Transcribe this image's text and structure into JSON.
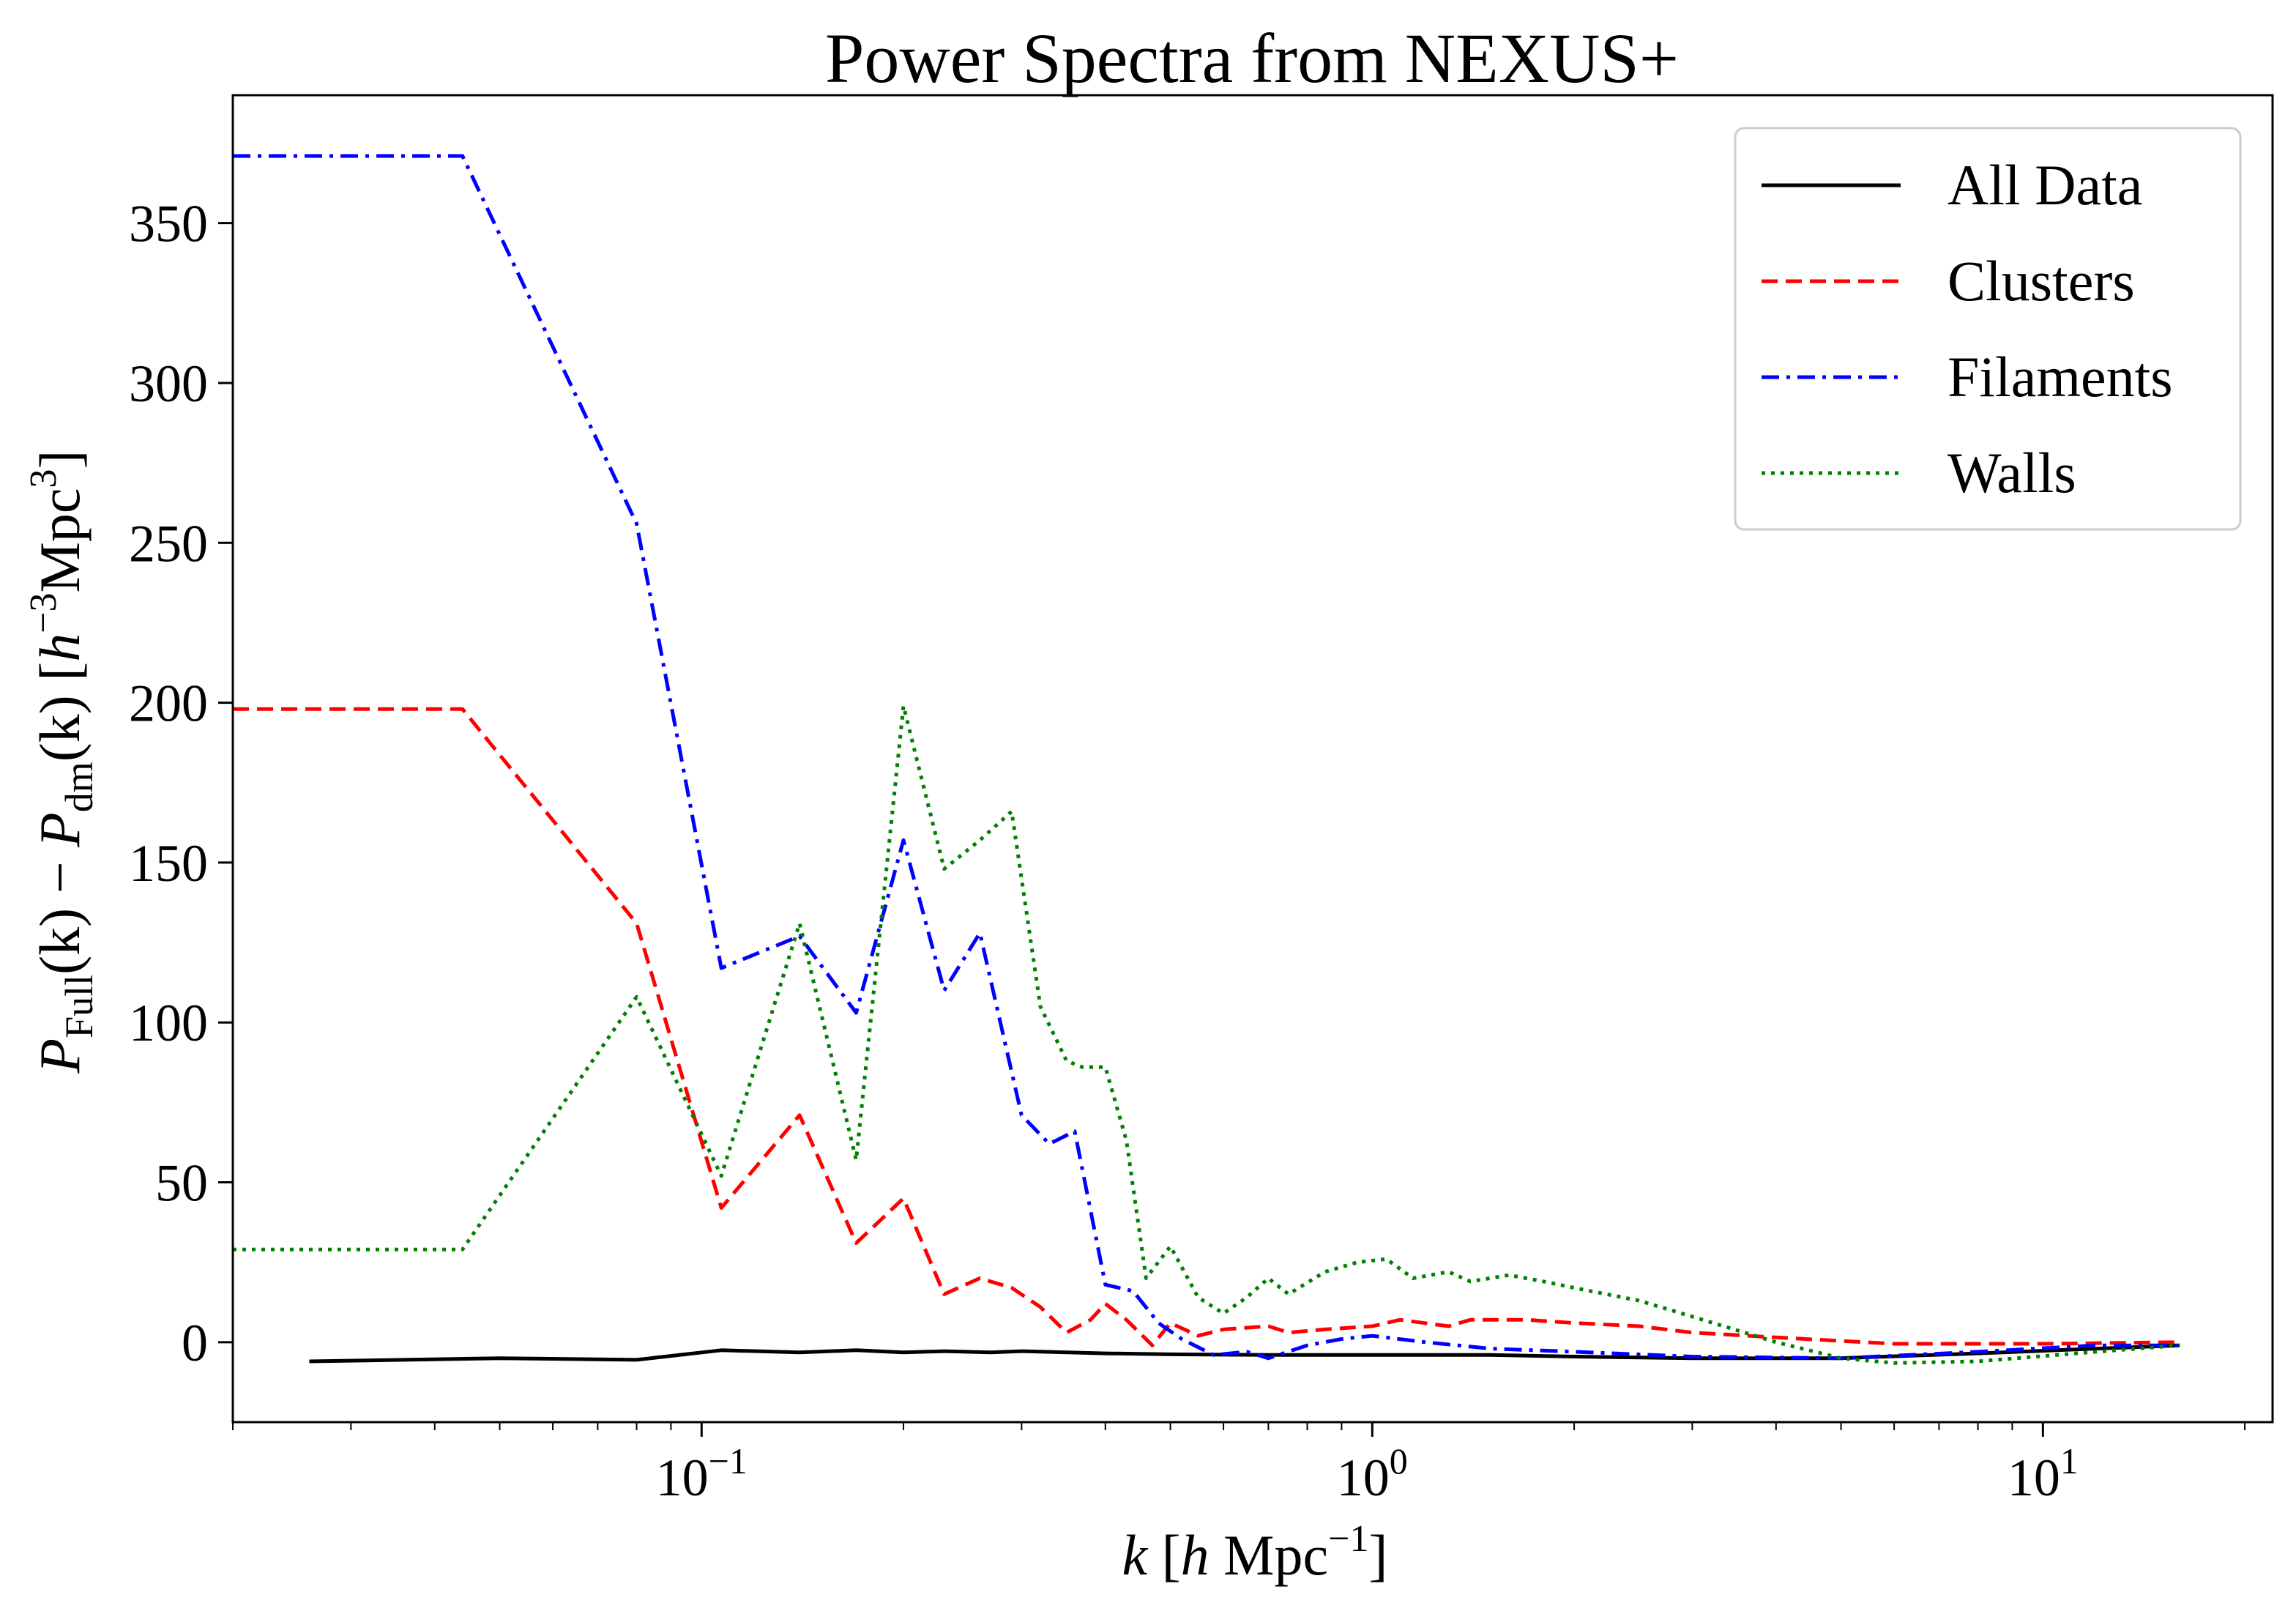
{
  "chart_data": {
    "type": "line",
    "title": "Power Spectra from NEXUS+",
    "xlabel": {
      "var": "k",
      "unit_prefix": " [",
      "h": "h",
      "unit": " Mpc",
      "exp": "−1",
      "close": "]"
    },
    "ylabel": {
      "p1": "P",
      "sub1": "Full",
      "arg1": "(k) − ",
      "p2": "P",
      "sub2": "dm",
      "arg2": "(k) [",
      "h": "h",
      "exp1": "−3",
      "unit": "Mpc",
      "exp2": "3",
      "close": "]"
    },
    "x_scale": "log",
    "xlim": [
      0.02,
      22
    ],
    "ylim": [
      -25,
      390
    ],
    "x_ticks": [
      {
        "value": 0.1,
        "base": "10",
        "exp": "−1"
      },
      {
        "value": 1,
        "base": "10",
        "exp": "0"
      },
      {
        "value": 10,
        "base": "10",
        "exp": "1"
      }
    ],
    "y_ticks": [
      0,
      50,
      100,
      150,
      200,
      250,
      300,
      350
    ],
    "y_tick_labels": [
      "0",
      "50",
      "100",
      "150",
      "200",
      "250",
      "300",
      "350"
    ],
    "grid": false,
    "legend_position": "top-right",
    "series": [
      {
        "name": "All Data",
        "color": "#000000",
        "style": "solid",
        "points": [
          [
            0.026,
            -6
          ],
          [
            0.05,
            -5
          ],
          [
            0.08,
            -5.5
          ],
          [
            0.107,
            -2.5
          ],
          [
            0.14,
            -3.2
          ],
          [
            0.17,
            -2.5
          ],
          [
            0.2,
            -3.2
          ],
          [
            0.23,
            -2.8
          ],
          [
            0.27,
            -3.2
          ],
          [
            0.3,
            -2.8
          ],
          [
            0.4,
            -3.5
          ],
          [
            0.5,
            -3.8
          ],
          [
            0.7,
            -4
          ],
          [
            1,
            -4
          ],
          [
            1.5,
            -4
          ],
          [
            2,
            -4.5
          ],
          [
            3,
            -5
          ],
          [
            5,
            -5
          ],
          [
            8,
            -3.5
          ],
          [
            12,
            -2
          ],
          [
            16,
            -1
          ]
        ]
      },
      {
        "name": "Clusters",
        "color": "#ff0000",
        "style": "dashed",
        "points": [
          [
            0.02,
            198
          ],
          [
            0.044,
            198
          ],
          [
            0.08,
            131
          ],
          [
            0.107,
            42
          ],
          [
            0.14,
            71
          ],
          [
            0.17,
            31
          ],
          [
            0.2,
            45
          ],
          [
            0.23,
            15
          ],
          [
            0.26,
            20
          ],
          [
            0.29,
            17
          ],
          [
            0.32,
            11
          ],
          [
            0.35,
            3
          ],
          [
            0.38,
            7
          ],
          [
            0.4,
            12
          ],
          [
            0.43,
            7
          ],
          [
            0.47,
            -1
          ],
          [
            0.5,
            6
          ],
          [
            0.55,
            2
          ],
          [
            0.6,
            4
          ],
          [
            0.7,
            5
          ],
          [
            0.75,
            3
          ],
          [
            0.85,
            4
          ],
          [
            1,
            5
          ],
          [
            1.1,
            7
          ],
          [
            1.3,
            5
          ],
          [
            1.4,
            7
          ],
          [
            1.7,
            7
          ],
          [
            2,
            6
          ],
          [
            2.5,
            5
          ],
          [
            3,
            3
          ],
          [
            4,
            1.5
          ],
          [
            6,
            -0.5
          ],
          [
            10,
            -0.5
          ],
          [
            16,
            0
          ]
        ]
      },
      {
        "name": "Filaments",
        "color": "#0000ff",
        "style": "dashdot",
        "points": [
          [
            0.02,
            371
          ],
          [
            0.044,
            371
          ],
          [
            0.08,
            256
          ],
          [
            0.107,
            117
          ],
          [
            0.14,
            127
          ],
          [
            0.17,
            103
          ],
          [
            0.2,
            157
          ],
          [
            0.23,
            110
          ],
          [
            0.26,
            128
          ],
          [
            0.3,
            71
          ],
          [
            0.33,
            62
          ],
          [
            0.36,
            66
          ],
          [
            0.4,
            18
          ],
          [
            0.44,
            16
          ],
          [
            0.48,
            6
          ],
          [
            0.52,
            1
          ],
          [
            0.58,
            -4
          ],
          [
            0.65,
            -3
          ],
          [
            0.7,
            -5
          ],
          [
            0.8,
            -1
          ],
          [
            0.9,
            1
          ],
          [
            1,
            2
          ],
          [
            1.2,
            0
          ],
          [
            1.5,
            -2
          ],
          [
            2,
            -3
          ],
          [
            3,
            -4.5
          ],
          [
            5,
            -5
          ],
          [
            8,
            -3
          ],
          [
            12,
            -1
          ],
          [
            16,
            -1
          ]
        ]
      },
      {
        "name": "Walls",
        "color": "#008000",
        "style": "dotted",
        "points": [
          [
            0.02,
            29
          ],
          [
            0.044,
            29
          ],
          [
            0.08,
            108
          ],
          [
            0.107,
            52
          ],
          [
            0.14,
            131
          ],
          [
            0.17,
            57
          ],
          [
            0.2,
            199
          ],
          [
            0.23,
            148
          ],
          [
            0.26,
            157
          ],
          [
            0.29,
            166
          ],
          [
            0.32,
            105
          ],
          [
            0.35,
            88
          ],
          [
            0.37,
            86
          ],
          [
            0.4,
            86
          ],
          [
            0.43,
            63
          ],
          [
            0.46,
            20
          ],
          [
            0.5,
            30
          ],
          [
            0.55,
            14
          ],
          [
            0.6,
            9
          ],
          [
            0.65,
            14
          ],
          [
            0.7,
            20
          ],
          [
            0.75,
            15
          ],
          [
            0.85,
            22
          ],
          [
            0.95,
            25
          ],
          [
            1.05,
            26
          ],
          [
            1.15,
            20
          ],
          [
            1.3,
            22
          ],
          [
            1.4,
            19
          ],
          [
            1.6,
            21
          ],
          [
            1.8,
            19
          ],
          [
            2,
            17
          ],
          [
            2.5,
            13
          ],
          [
            3,
            8
          ],
          [
            4,
            0
          ],
          [
            5,
            -5
          ],
          [
            6,
            -6.5
          ],
          [
            8,
            -6
          ],
          [
            12,
            -3
          ],
          [
            16,
            -1
          ]
        ]
      }
    ]
  }
}
